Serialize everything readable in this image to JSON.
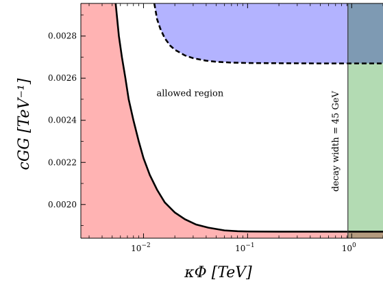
{
  "chart_data": {
    "type": "area",
    "title": "",
    "xlabel": "κΦ [TeV]",
    "ylabel": "cGG [TeV⁻¹]",
    "x_scale": "log",
    "xlim": [
      0.0025,
      2.0
    ],
    "ylim": [
      0.00184,
      0.002955
    ],
    "x_ticks": [
      {
        "value": 0.01,
        "base": "10",
        "exp": "−2"
      },
      {
        "value": 0.1,
        "base": "10",
        "exp": "−1"
      },
      {
        "value": 1,
        "base": "10",
        "exp": "0"
      }
    ],
    "y_ticks": [
      {
        "value": 0.002,
        "label": "0.0020"
      },
      {
        "value": 0.0022,
        "label": "0.0022"
      },
      {
        "value": 0.0024,
        "label": "0.0024"
      },
      {
        "value": 0.0026,
        "label": "0.0026"
      },
      {
        "value": 0.0028,
        "label": "0.0028"
      }
    ],
    "grid": false,
    "legend": "none",
    "lower_boundary": {
      "style": "solid",
      "color": "#000000",
      "fill": "#ffb3b3",
      "x": [
        0.0054,
        0.0058,
        0.0062,
        0.0067,
        0.0072,
        0.008,
        0.009,
        0.01,
        0.0115,
        0.0135,
        0.016,
        0.02,
        0.025,
        0.032,
        0.042,
        0.06,
        0.08,
        0.1,
        0.2,
        0.5,
        1.0,
        2.0
      ],
      "y": [
        0.002955,
        0.0028,
        0.0027,
        0.0026,
        0.0025,
        0.0024,
        0.0023,
        0.00222,
        0.00214,
        0.00207,
        0.00201,
        0.001962,
        0.00193,
        0.001905,
        0.00189,
        0.001877,
        0.001873,
        0.001872,
        0.001871,
        0.001871,
        0.001871,
        0.001871
      ]
    },
    "upper_boundary": {
      "style": "dashed",
      "color": "#000000",
      "fill": "#b3b3ff",
      "x": [
        0.0127,
        0.0135,
        0.0145,
        0.016,
        0.018,
        0.02,
        0.025,
        0.03,
        0.04,
        0.05,
        0.07,
        0.1,
        0.2,
        0.5,
        1.0,
        2.0
      ],
      "y": [
        0.002955,
        0.00288,
        0.002835,
        0.00279,
        0.002755,
        0.002735,
        0.002708,
        0.002695,
        0.002683,
        0.002678,
        0.002674,
        0.002672,
        0.002671,
        0.00267,
        0.00267,
        0.00267
      ]
    },
    "width_limit": {
      "x": 0.92,
      "fill": "#b3dbb3",
      "color": "#333333",
      "label": "decay width = 45 GeV"
    },
    "annotations": [
      {
        "text": "allowed region",
        "x": 0.028,
        "y": 0.002515
      }
    ]
  }
}
